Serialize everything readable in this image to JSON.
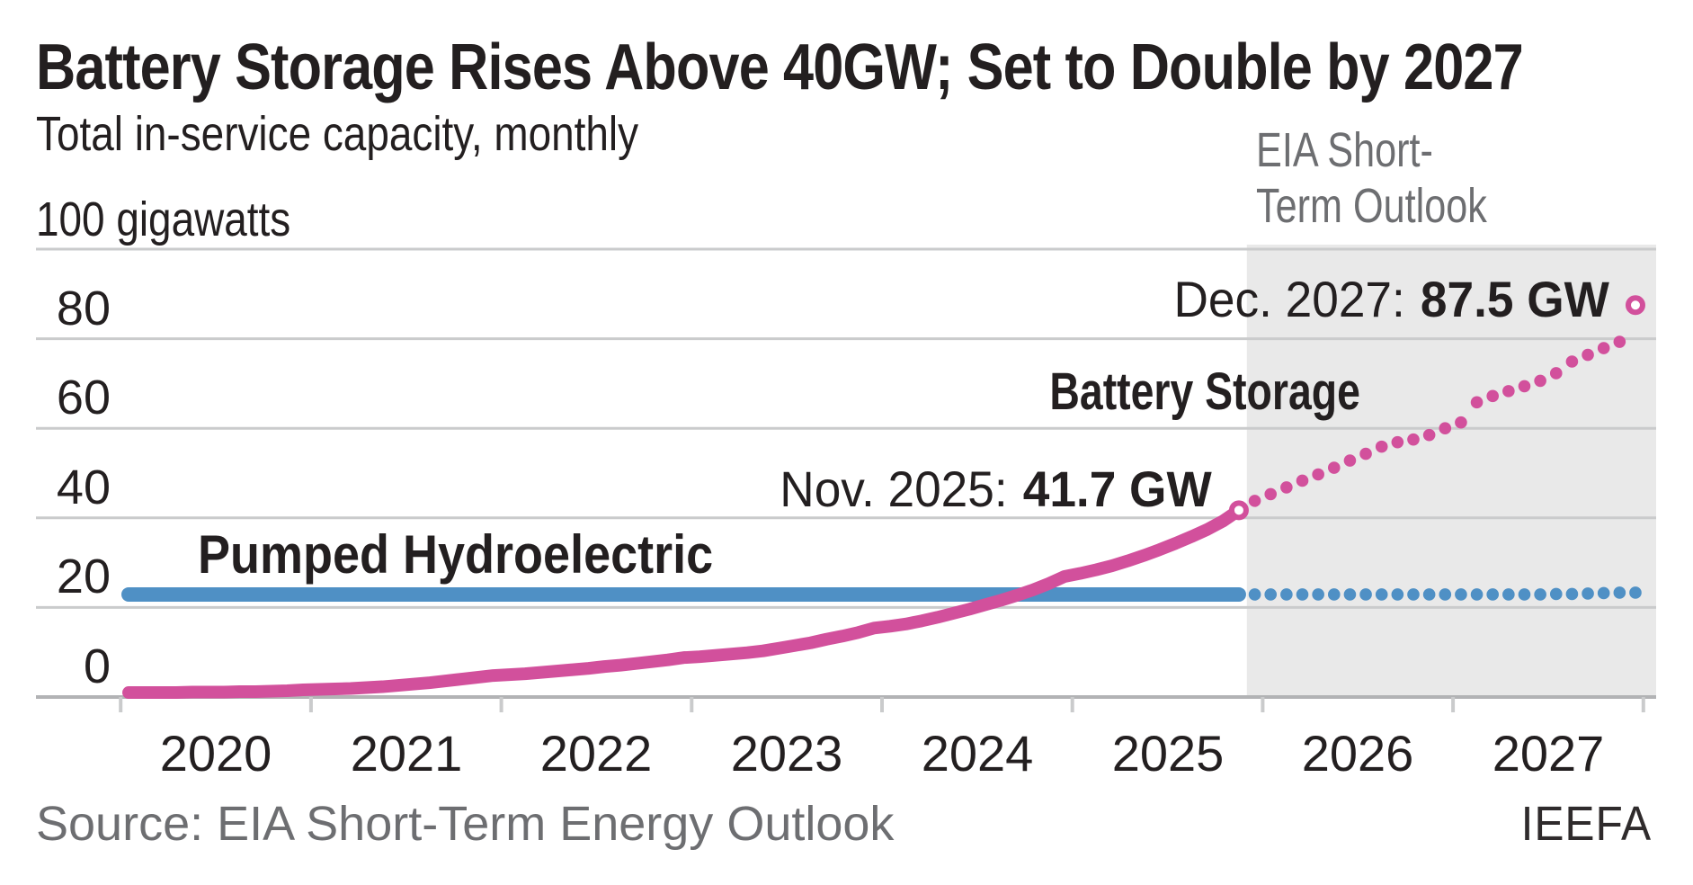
{
  "header": {
    "title": "Battery Storage Rises Above 40GW; Set to Double by 2027",
    "subtitle": "Total in-service capacity, monthly"
  },
  "axis": {
    "unit_label": "100 gigawatts",
    "y_ticks": [
      "80",
      "60",
      "40",
      "20",
      "0"
    ],
    "x_ticks": [
      "2020",
      "2021",
      "2022",
      "2023",
      "2024",
      "2025",
      "2026",
      "2027"
    ]
  },
  "labels": {
    "forecast_line1": "EIA Short-",
    "forecast_line2": "Term Outlook",
    "dec2027_label": "Dec. 2027:",
    "dec2027_value": "87.5 GW",
    "battery": "Battery Storage",
    "nov2025_label": "Nov. 2025:",
    "nov2025_value": "41.7 GW",
    "hydro": "Pumped Hydroelectric"
  },
  "footer": {
    "source": "Source: EIA Short-Term Energy Outlook",
    "credit": "IEEFA"
  },
  "colors": {
    "battery_pink": "#d2509c",
    "hydro_blue": "#4f90c5",
    "shade_gray": "#e9e9e9",
    "grid_gray": "#cacbcc",
    "axis_gray": "#b2b3b5",
    "text_dark": "#231f20",
    "text_gray": "#6d6e71"
  },
  "chart_data": {
    "type": "line",
    "title": "Battery Storage Rises Above 40GW; Set to Double by 2027",
    "subtitle": "Total in-service capacity, monthly",
    "ylabel": "gigawatts",
    "ylim": [
      0,
      100
    ],
    "yticks": [
      0,
      20,
      40,
      60,
      80,
      100
    ],
    "x_start": "2020-01",
    "frequency": "monthly",
    "x_year_tick_labels": [
      "2020",
      "2021",
      "2022",
      "2023",
      "2024",
      "2025",
      "2026",
      "2027"
    ],
    "forecast_start": "2025-12",
    "forecast_region_label": "EIA Short-Term Outlook",
    "legend_position": "inline-annotations",
    "grid": true,
    "series": [
      {
        "name": "Battery Storage",
        "color": "#d2509c",
        "style_historical": "solid",
        "style_forecast": "dotted",
        "historical_start": "2020-01",
        "historical": [
          1.0,
          1.0,
          1.0,
          1.0,
          1.1,
          1.1,
          1.1,
          1.2,
          1.2,
          1.3,
          1.4,
          1.6,
          1.7,
          1.8,
          1.9,
          2.1,
          2.3,
          2.6,
          2.9,
          3.2,
          3.6,
          4.0,
          4.4,
          4.8,
          5.0,
          5.2,
          5.5,
          5.8,
          6.1,
          6.4,
          6.8,
          7.1,
          7.5,
          7.9,
          8.3,
          8.8,
          9.0,
          9.3,
          9.6,
          9.9,
          10.3,
          10.9,
          11.5,
          12.1,
          12.9,
          13.6,
          14.4,
          15.4,
          15.8,
          16.3,
          17.0,
          17.8,
          18.7,
          19.6,
          20.6,
          21.6,
          22.7,
          23.9,
          25.3,
          26.9,
          27.6,
          28.4,
          29.3,
          30.4,
          31.6,
          32.9,
          34.3,
          35.8,
          37.4,
          39.3,
          41.7
        ],
        "forecast_start": "2025-12",
        "forecast": [
          43.8,
          45.3,
          46.8,
          48.3,
          49.7,
          51.2,
          52.8,
          54.3,
          55.9,
          56.9,
          57.5,
          58.5,
          60.0,
          61.3,
          65.8,
          67.2,
          68.3,
          69.4,
          70.6,
          72.3,
          74.9,
          76.4,
          77.9,
          79.3,
          87.5
        ],
        "callouts": [
          {
            "date": "2025-11",
            "value": 41.7,
            "label": "Nov. 2025:",
            "value_label": "41.7 GW",
            "marker": "open-circle"
          },
          {
            "date": "2027-12",
            "value": 87.5,
            "label": "Dec. 2027:",
            "value_label": "87.5 GW",
            "marker": "open-circle"
          }
        ]
      },
      {
        "name": "Pumped Hydroelectric",
        "color": "#4f90c5",
        "style_historical": "solid",
        "style_forecast": "dotted",
        "historical_start": "2020-01",
        "historical_constant": 22.9,
        "historical_months": 71,
        "forecast_start": "2025-12",
        "forecast": [
          22.9,
          22.9,
          22.9,
          22.9,
          22.9,
          22.9,
          22.9,
          22.9,
          22.9,
          22.9,
          22.9,
          22.9,
          22.9,
          22.9,
          22.9,
          22.9,
          22.9,
          22.9,
          22.9,
          23.0,
          23.0,
          23.1,
          23.2,
          23.3,
          23.3
        ]
      }
    ]
  }
}
